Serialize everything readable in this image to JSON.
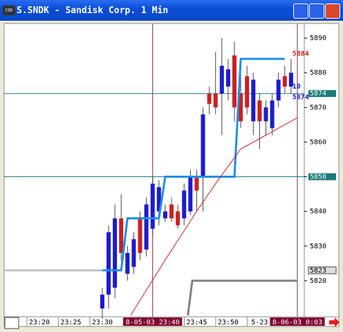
{
  "window": {
    "title": "S.SNDK - Sandisk Corp. 1 Min"
  },
  "chart_data": {
    "type": "candlestick",
    "x": [
      1410,
      1411,
      1412,
      1413,
      1414,
      1415,
      1416,
      1417,
      1418,
      1419,
      1420,
      1421,
      1422,
      1423,
      1424,
      1425,
      1426,
      1427,
      1428,
      1429,
      1430,
      1431,
      1432,
      1433,
      1434,
      1435,
      1436,
      1437,
      1438,
      1439,
      1440
    ],
    "open": [
      5812,
      5816,
      5818,
      5838,
      5822,
      5824,
      5838,
      5829,
      5835,
      5840,
      5838,
      5842,
      5840,
      5838,
      5840,
      5850,
      5850,
      5874,
      5874,
      5874,
      5876,
      5885,
      5874,
      5879,
      5866,
      5872,
      5866,
      5864,
      5872,
      5879,
      5876
    ],
    "high": [
      5818,
      5836,
      5842,
      5845,
      5830,
      5834,
      5840,
      5844,
      5850,
      5849,
      5842,
      5844,
      5842,
      5848,
      5852,
      5852,
      5870,
      5876,
      5886,
      5890,
      5884,
      5889,
      5880,
      5882,
      5880,
      5874,
      5872,
      5874,
      5880,
      5882,
      5884
    ],
    "low": [
      5809,
      5812,
      5815,
      5826,
      5820,
      5822,
      5826,
      5827,
      5833,
      5836,
      5837,
      5837,
      5835,
      5836,
      5839,
      5840,
      5840,
      5868,
      5868,
      5862,
      5872,
      5866,
      5864,
      5868,
      5862,
      5858,
      5862,
      5862,
      5870,
      5874,
      5874
    ],
    "close": [
      5816,
      5834,
      5838,
      5828,
      5828,
      5832,
      5828,
      5842,
      5848,
      5847,
      5840,
      5838,
      5836,
      5846,
      5850,
      5846,
      5868,
      5871,
      5870,
      5882,
      5881,
      5870,
      5866,
      5870,
      5878,
      5866,
      5870,
      5872,
      5878,
      5876,
      5880
    ],
    "up_color": "#1c1ccc",
    "down_color": "#cc2020",
    "xlim": [
      1394.4,
      1442.1
    ],
    "ylim": [
      5809.6,
      5894.2
    ],
    "xticks": [
      {
        "value": 1400,
        "label": "23:20"
      },
      {
        "value": 1405,
        "label": "23:25"
      },
      {
        "value": 1410,
        "label": "23:30"
      },
      {
        "value": 1425,
        "label": "23:45"
      },
      {
        "value": 1430,
        "label": "23:50"
      },
      {
        "value": 1435,
        "label": "5-23"
      }
    ],
    "yticks": [
      5820,
      5830,
      5840,
      5850,
      5860,
      5870,
      5880,
      5890
    ],
    "lines": [
      {
        "color": "#1e8ee8",
        "x": [
          1410,
          1413,
          1414,
          1419,
          1420,
          1431,
          1432,
          1439
        ],
        "values": [
          5823,
          5823,
          5838,
          5838,
          5850,
          5850,
          5884,
          5884
        ]
      },
      {
        "color": "#d02020",
        "x": [
          1414.5,
          1420,
          1425,
          1428,
          1432,
          1436,
          1441
        ],
        "values": [
          5810,
          5826,
          5840,
          5848,
          5858,
          5862,
          5867
        ]
      },
      {
        "color": "#c0c0c0",
        "x": [
          1394.5,
          1410
        ],
        "values": [
          5823,
          5823
        ]
      },
      {
        "color": "#808080",
        "x": [
          1423.6,
          1424.3,
          1441
        ],
        "values": [
          5810,
          5820,
          5820
        ]
      }
    ],
    "hlines": [
      {
        "value": 5874,
        "label": "5874",
        "color": "#1a7a7a"
      },
      {
        "value": 5850,
        "label": "5850",
        "color": "#1a7a7a"
      }
    ],
    "price_marks": [
      {
        "value": 5823,
        "label": "5823"
      }
    ],
    "cursors": [
      {
        "x": 1418,
        "label": "8-05-03 23:40"
      },
      {
        "x": 1441,
        "label": "8-06-03 0:03"
      }
    ],
    "annotations": [
      {
        "text": "5884",
        "x": 1440.2,
        "y": 5885.5,
        "color": "#cc2020"
      },
      {
        "text": "10",
        "x": 1440.2,
        "y": 5876,
        "color": "#1c1ccc"
      },
      {
        "text": "5874",
        "x": 1440.2,
        "y": 5873,
        "color": "#1c1ccc"
      }
    ]
  }
}
